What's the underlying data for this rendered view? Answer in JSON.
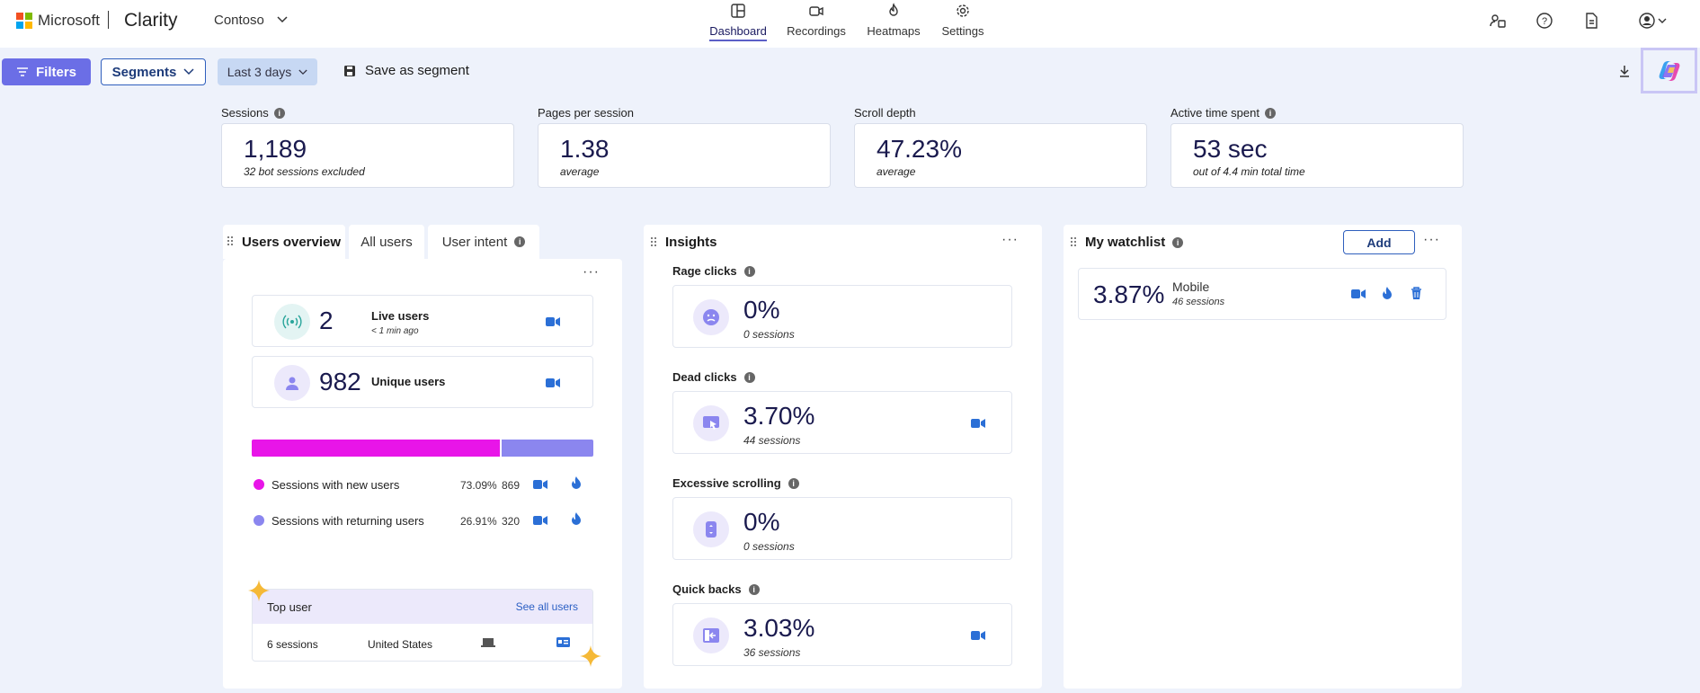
{
  "topbar": {
    "microsoft": "Microsoft",
    "brand": "Clarity",
    "project": "Contoso",
    "nav": [
      {
        "label": "Dashboard",
        "icon": "dashboard-icon"
      },
      {
        "label": "Recordings",
        "icon": "camera-icon"
      },
      {
        "label": "Heatmaps",
        "icon": "flame-icon"
      },
      {
        "label": "Settings",
        "icon": "gear-icon"
      }
    ],
    "right_icons": [
      "people-icon",
      "help-icon",
      "document-icon",
      "account-icon"
    ]
  },
  "filterbar": {
    "filters": "Filters",
    "segments": "Segments",
    "range": "Last 3 days",
    "save": "Save as segment"
  },
  "kpis": [
    {
      "title": "Sessions",
      "value": "1,189",
      "sub": "32 bot sessions excluded"
    },
    {
      "title": "Pages per session",
      "value": "1.38",
      "sub": "average"
    },
    {
      "title": "Scroll depth",
      "value": "47.23%",
      "sub": "average"
    },
    {
      "title": "Active time spent",
      "value": "53 sec",
      "sub": "out of 4.4 min total time"
    }
  ],
  "users": {
    "tabs": [
      "Users overview",
      "All users",
      "User intent"
    ],
    "live_value": "2",
    "live_label": "Live users",
    "live_sub": "< 1 min ago",
    "unique_value": "982",
    "unique_label": "Unique users",
    "bar": {
      "new_fraction": 0.7309,
      "new_color": "#e815e8",
      "returning_color": "#8b86ef"
    },
    "segments": [
      {
        "label": "Sessions with new users",
        "pct": "73.09%",
        "count": "869"
      },
      {
        "label": "Sessions with returning users",
        "pct": "26.91%",
        "count": "320"
      }
    ],
    "top_user_title": "Top user",
    "see_all": "See all users",
    "top_sessions": "6 sessions",
    "top_country": "United States"
  },
  "insights": {
    "title": "Insights",
    "items": [
      {
        "label": "Rage clicks",
        "value": "0%",
        "sub": "0 sessions"
      },
      {
        "label": "Dead clicks",
        "value": "3.70%",
        "sub": "44 sessions"
      },
      {
        "label": "Excessive scrolling",
        "value": "0%",
        "sub": "0 sessions"
      },
      {
        "label": "Quick backs",
        "value": "3.03%",
        "sub": "36 sessions"
      }
    ]
  },
  "watchlist": {
    "title": "My watchlist",
    "add": "Add",
    "item": {
      "value": "3.87%",
      "label": "Mobile",
      "sub": "46 sessions"
    }
  }
}
